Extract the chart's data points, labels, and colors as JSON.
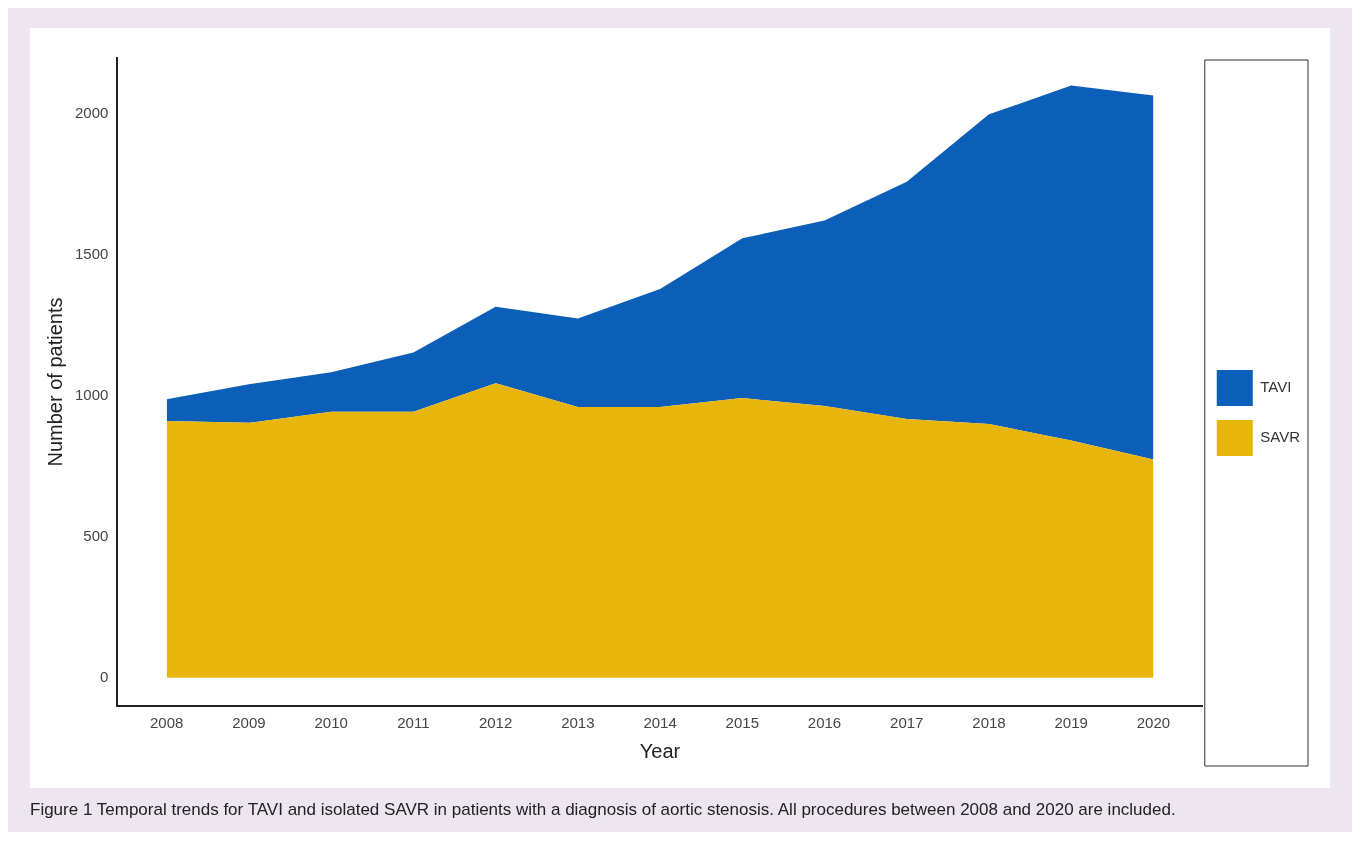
{
  "chart_data": {
    "type": "area",
    "stacked": true,
    "xlabel": "Year",
    "ylabel": "Number of patients",
    "x": [
      2008,
      2009,
      2010,
      2011,
      2012,
      2013,
      2014,
      2015,
      2016,
      2017,
      2018,
      2019,
      2020
    ],
    "xlim": [
      2007.4,
      2020.6
    ],
    "xticks": [
      2008,
      2009,
      2010,
      2011,
      2012,
      2013,
      2014,
      2015,
      2016,
      2017,
      2018,
      2019,
      2020
    ],
    "ylim": [
      -100,
      2200
    ],
    "yticks": [
      0,
      500,
      1000,
      1500,
      2000
    ],
    "grid": false,
    "legend": "right",
    "series": [
      {
        "name": "SAVR",
        "color": "#e8b50c",
        "values": [
          912,
          905,
          944,
          944,
          1046,
          961,
          961,
          993,
          965,
          919,
          901,
          842,
          775
        ]
      },
      {
        "name": "TAVI",
        "color": "#0c5fb8",
        "values": [
          77,
          137,
          141,
          211,
          271,
          314,
          419,
          567,
          658,
          842,
          1099,
          1260,
          1292
        ]
      }
    ],
    "annotations": [
      "Figure 1 Temporal trends for TAVI and isolated SAVR in patients with a diagnosis of aortic stenosis. All procedures between 2008 and 2020 are included."
    ]
  }
}
